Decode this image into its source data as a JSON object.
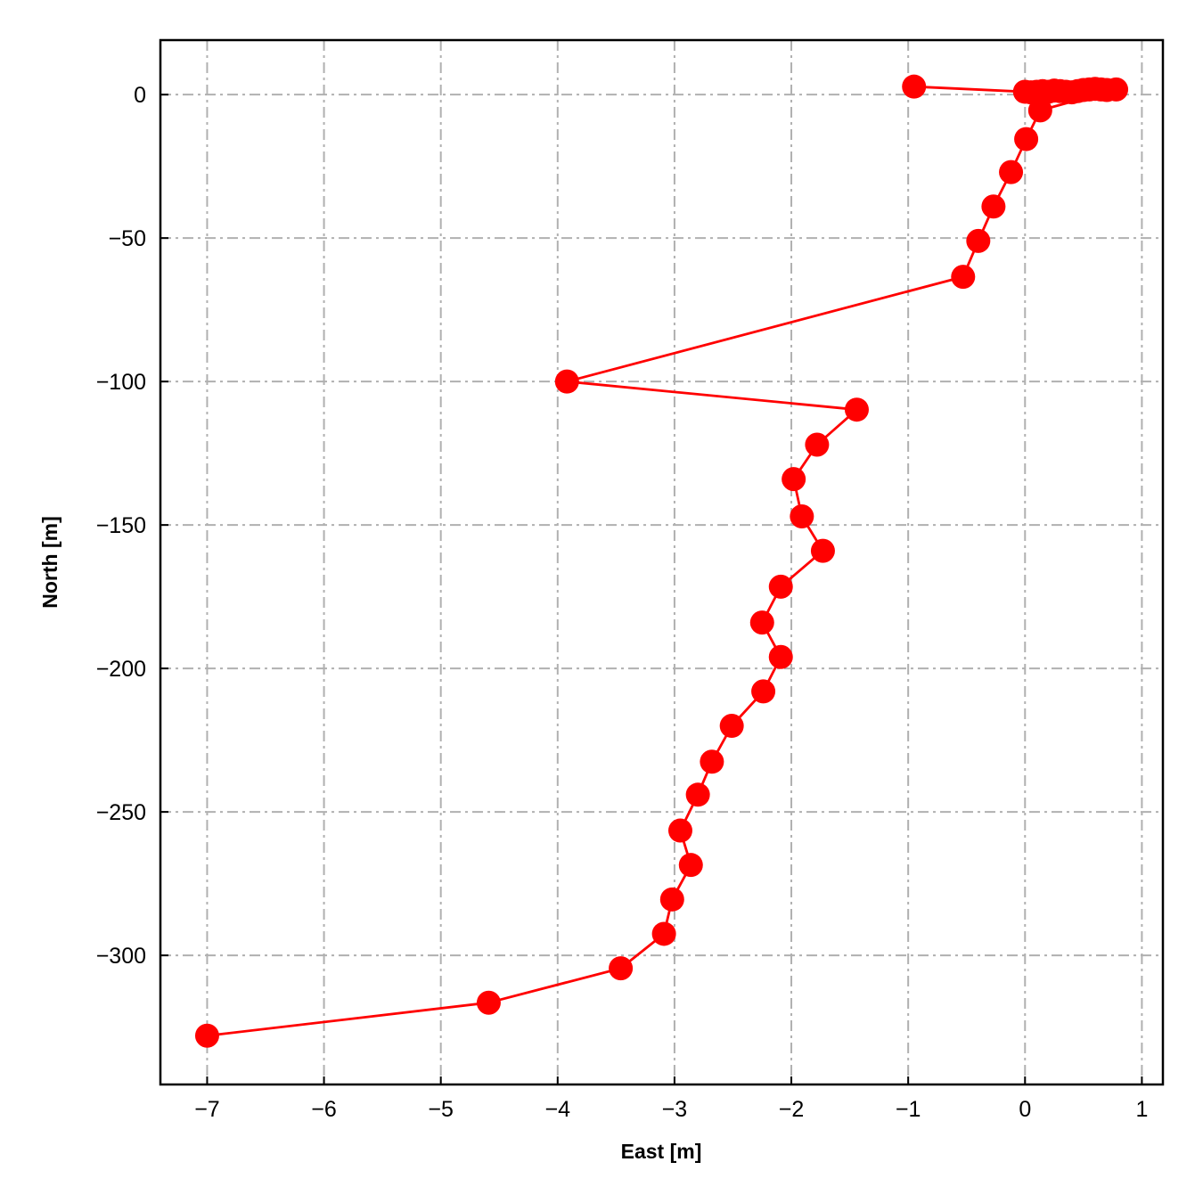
{
  "chart_data": {
    "type": "line",
    "title": "",
    "xlabel": "East [m]",
    "ylabel": "North [m]",
    "xlim": [
      -7.4,
      1.18
    ],
    "ylim": [
      -345,
      19
    ],
    "xticks": [
      -7,
      -6,
      -5,
      -4,
      -3,
      -2,
      -1,
      0,
      1
    ],
    "xtick_labels": [
      "−7",
      "−6",
      "−5",
      "−4",
      "−3",
      "−2",
      "−1",
      "0",
      "1"
    ],
    "yticks": [
      0,
      -50,
      -100,
      -150,
      -200,
      -250,
      -300
    ],
    "ytick_labels": [
      "0",
      "−50",
      "−100",
      "−150",
      "−200",
      "−250",
      "−300"
    ],
    "grid": true,
    "legend": "none",
    "colors": {
      "series": "#ff0000",
      "grid": "#b0b0b0",
      "axes": "#000000"
    },
    "series": [
      {
        "marker": "circle",
        "points": [
          [
            -0.95,
            2.8
          ],
          [
            0.0,
            1.0
          ],
          [
            0.05,
            0.8
          ],
          [
            0.1,
            1.0
          ],
          [
            0.15,
            1.2
          ],
          [
            0.2,
            1.0
          ],
          [
            0.25,
            1.4
          ],
          [
            0.3,
            1.2
          ],
          [
            0.35,
            1.0
          ],
          [
            0.4,
            0.8
          ],
          [
            0.45,
            1.2
          ],
          [
            0.5,
            1.6
          ],
          [
            0.55,
            1.8
          ],
          [
            0.6,
            2.0
          ],
          [
            0.65,
            1.8
          ],
          [
            0.7,
            1.6
          ],
          [
            0.78,
            1.8
          ],
          [
            0.13,
            -5.5
          ],
          [
            0.01,
            -15.5
          ],
          [
            -0.12,
            -27.0
          ],
          [
            -0.27,
            -39.0
          ],
          [
            -0.4,
            -51.0
          ],
          [
            -0.53,
            -63.5
          ],
          [
            -3.92,
            -100.0
          ],
          [
            -1.44,
            -109.8
          ],
          [
            -1.78,
            -122.0
          ],
          [
            -1.98,
            -134.0
          ],
          [
            -1.91,
            -147.0
          ],
          [
            -1.73,
            -159.0
          ],
          [
            -2.09,
            -171.5
          ],
          [
            -2.25,
            -184.0
          ],
          [
            -2.09,
            -196.0
          ],
          [
            -2.24,
            -208.0
          ],
          [
            -2.51,
            -220.0
          ],
          [
            -2.68,
            -232.5
          ],
          [
            -2.8,
            -244.0
          ],
          [
            -2.95,
            -256.5
          ],
          [
            -2.86,
            -268.5
          ],
          [
            -3.02,
            -280.5
          ],
          [
            -3.09,
            -292.5
          ],
          [
            -3.46,
            -304.5
          ],
          [
            -4.59,
            -316.5
          ],
          [
            -7.0,
            -328.0
          ]
        ]
      }
    ]
  }
}
